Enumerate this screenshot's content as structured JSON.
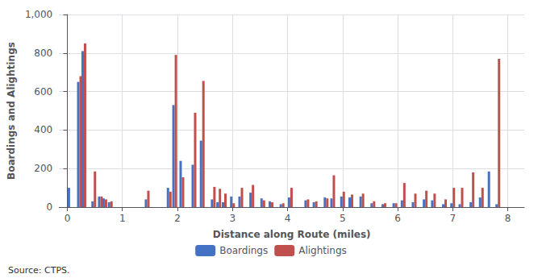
{
  "chart_data": {
    "type": "bar",
    "xlabel": "Distance along Route (miles)",
    "ylabel": "Boardings and Alightings",
    "annotations": [
      "Source: CTPS."
    ],
    "x": [
      0.05,
      0.22,
      0.3,
      0.48,
      0.6,
      0.68,
      0.78,
      1.45,
      1.85,
      1.95,
      2.08,
      2.3,
      2.45,
      2.65,
      2.75,
      2.85,
      3.0,
      3.15,
      3.35,
      3.55,
      3.7,
      3.9,
      4.05,
      4.35,
      4.5,
      4.7,
      4.82,
      5.0,
      5.15,
      5.35,
      5.55,
      5.75,
      5.95,
      6.1,
      6.3,
      6.5,
      6.65,
      6.85,
      7.0,
      7.15,
      7.35,
      7.52,
      7.68,
      7.82
    ],
    "series": [
      {
        "name": "Boardings",
        "color": "#4472C4",
        "values": [
          100,
          650,
          810,
          30,
          55,
          45,
          25,
          40,
          100,
          530,
          240,
          220,
          345,
          40,
          25,
          25,
          55,
          55,
          75,
          45,
          30,
          15,
          50,
          35,
          25,
          50,
          45,
          55,
          50,
          55,
          20,
          15,
          20,
          35,
          25,
          40,
          35,
          15,
          20,
          15,
          25,
          50,
          185,
          15
        ]
      },
      {
        "name": "Alightings",
        "color": "#C0504D",
        "values": [
          0,
          680,
          850,
          185,
          55,
          40,
          30,
          85,
          80,
          790,
          155,
          490,
          655,
          105,
          95,
          70,
          20,
          100,
          115,
          35,
          25,
          20,
          100,
          40,
          30,
          45,
          165,
          80,
          65,
          70,
          30,
          20,
          20,
          125,
          70,
          85,
          70,
          40,
          100,
          100,
          180,
          100,
          0,
          770
        ]
      }
    ],
    "xlim": [
      -0.15,
      8.3
    ],
    "xticks": [
      0,
      1,
      2,
      3,
      4,
      5,
      6,
      7,
      8
    ],
    "ylim": [
      0,
      1000
    ],
    "yticks": [
      0,
      200,
      400,
      600,
      800,
      {
        "value": 1000,
        "label": "1,000"
      }
    ],
    "grid": true,
    "legend": "bottom"
  }
}
